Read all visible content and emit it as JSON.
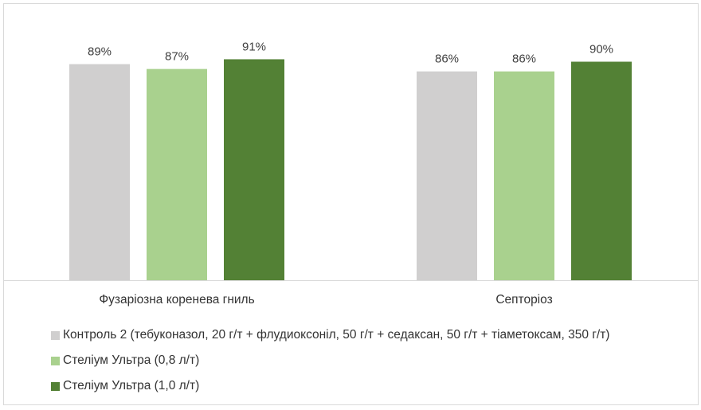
{
  "chart_data": {
    "type": "bar",
    "categories": [
      "Фузаріозна коренева гниль",
      "Септоріоз"
    ],
    "series": [
      {
        "name": "Контроль 2 (тебуконазол, 20 г/т + флудиоксоніл, 50 г/т + седаксан, 50 г/т + тіаметоксам, 350 г/т)",
        "values": [
          89,
          86
        ],
        "labels": [
          "89%",
          "86%"
        ],
        "color": "#d0cfcf"
      },
      {
        "name": "Стеліум Ультра (0,8 л/т)",
        "values": [
          87,
          86
        ],
        "labels": [
          "87%",
          "86%"
        ],
        "color": "#a9d18e"
      },
      {
        "name": "Стеліум Ультра (1,0 л/т)",
        "values": [
          91,
          90
        ],
        "labels": [
          "91%",
          "90%"
        ],
        "color": "#538135"
      }
    ],
    "legend_position": "bottom",
    "grid": false
  }
}
